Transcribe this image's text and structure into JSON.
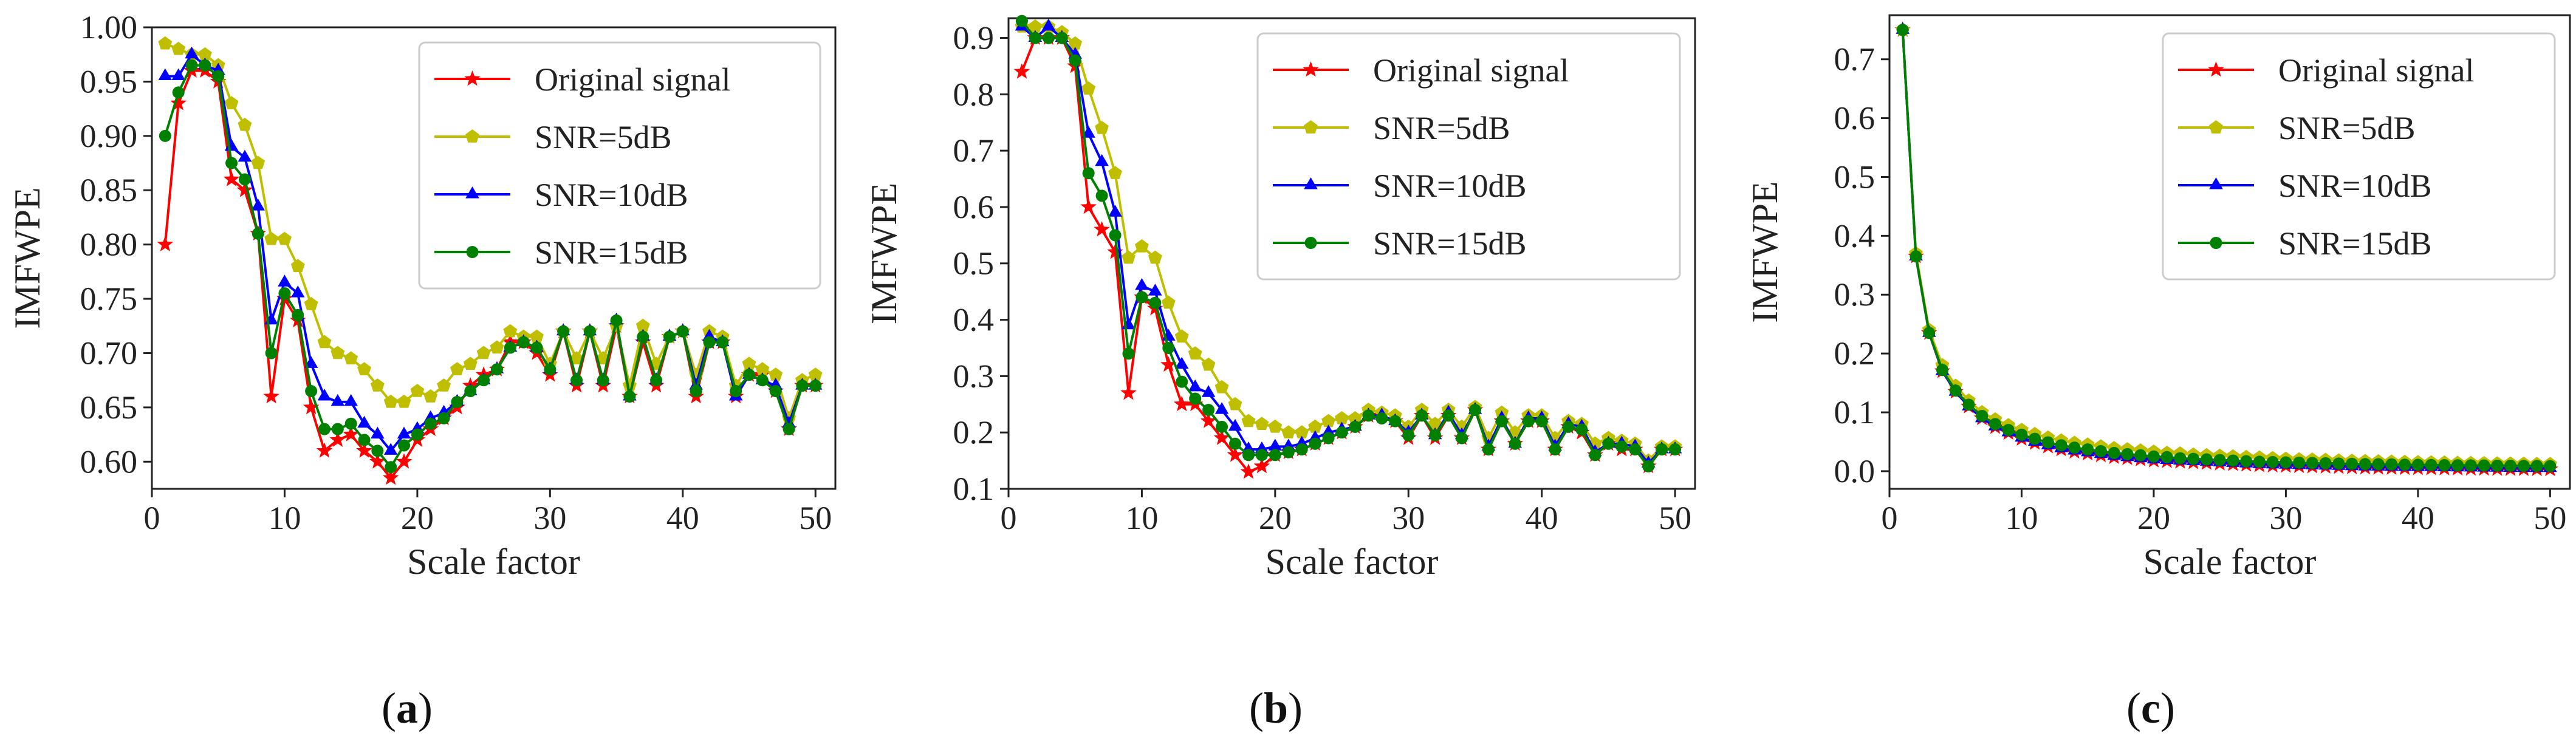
{
  "colors": {
    "original": "#ff0000",
    "snr5": "#bfbf00",
    "snr10": "#0000ff",
    "snr15": "#008000"
  },
  "captions": [
    {
      "open": "(",
      "letter": "a",
      "close": ")"
    },
    {
      "open": "(",
      "letter": "b",
      "close": ")"
    },
    {
      "open": "(",
      "letter": "c",
      "close": ")"
    }
  ],
  "chart_data": [
    {
      "type": "line",
      "title": "",
      "xlabel": "Scale factor",
      "ylabel": "IMFWPE",
      "xlim": [
        0,
        51.5
      ],
      "ylim": [
        0.575,
        1.0
      ],
      "xticks": [
        0,
        10,
        20,
        30,
        40,
        50
      ],
      "yticks": [
        0.6,
        0.65,
        0.7,
        0.75,
        0.8,
        0.85,
        0.9,
        0.95,
        1.0
      ],
      "ytick_labels": [
        "0.60",
        "0.65",
        "0.70",
        "0.75",
        "0.80",
        "0.85",
        "0.90",
        "0.95",
        "1.00"
      ],
      "legend_position": "top-right",
      "x_start": 1,
      "series": [
        {
          "name": "Original signal",
          "key": "original",
          "marker": "star",
          "values": [
            0.8,
            0.93,
            0.96,
            0.96,
            0.95,
            0.86,
            0.85,
            0.81,
            0.66,
            0.75,
            0.73,
            0.65,
            0.61,
            0.62,
            0.625,
            0.61,
            0.6,
            0.585,
            0.6,
            0.62,
            0.63,
            0.64,
            0.65,
            0.67,
            0.68,
            0.685,
            0.71,
            0.71,
            0.7,
            0.68,
            0.72,
            0.67,
            0.72,
            0.67,
            0.725,
            0.66,
            0.71,
            0.67,
            0.715,
            0.72,
            0.66,
            0.71,
            0.71,
            0.66,
            0.68,
            0.68,
            0.665,
            0.63,
            0.67,
            0.67
          ]
        },
        {
          "name": "SNR=5dB",
          "key": "snr5",
          "marker": "pentagon",
          "values": [
            0.985,
            0.98,
            0.975,
            0.975,
            0.965,
            0.93,
            0.91,
            0.875,
            0.805,
            0.805,
            0.78,
            0.745,
            0.71,
            0.7,
            0.695,
            0.685,
            0.67,
            0.655,
            0.655,
            0.665,
            0.66,
            0.67,
            0.685,
            0.69,
            0.7,
            0.705,
            0.72,
            0.715,
            0.715,
            0.69,
            0.72,
            0.695,
            0.72,
            0.695,
            0.725,
            0.67,
            0.725,
            0.69,
            0.715,
            0.72,
            0.68,
            0.72,
            0.715,
            0.67,
            0.69,
            0.685,
            0.68,
            0.64,
            0.675,
            0.68
          ]
        },
        {
          "name": "SNR=10dB",
          "key": "snr10",
          "marker": "triangle",
          "values": [
            0.955,
            0.955,
            0.975,
            0.965,
            0.96,
            0.89,
            0.88,
            0.835,
            0.73,
            0.765,
            0.755,
            0.69,
            0.66,
            0.655,
            0.655,
            0.635,
            0.625,
            0.61,
            0.625,
            0.63,
            0.64,
            0.645,
            0.655,
            0.665,
            0.675,
            0.685,
            0.705,
            0.71,
            0.705,
            0.685,
            0.72,
            0.675,
            0.72,
            0.675,
            0.73,
            0.66,
            0.715,
            0.675,
            0.715,
            0.72,
            0.67,
            0.715,
            0.71,
            0.66,
            0.68,
            0.675,
            0.67,
            0.635,
            0.67,
            0.67
          ]
        },
        {
          "name": "SNR=15dB",
          "key": "snr15",
          "marker": "circle",
          "values": [
            0.9,
            0.94,
            0.965,
            0.965,
            0.955,
            0.875,
            0.86,
            0.81,
            0.7,
            0.755,
            0.735,
            0.665,
            0.63,
            0.63,
            0.635,
            0.62,
            0.61,
            0.595,
            0.615,
            0.625,
            0.635,
            0.64,
            0.655,
            0.665,
            0.675,
            0.685,
            0.705,
            0.71,
            0.705,
            0.685,
            0.72,
            0.675,
            0.72,
            0.675,
            0.73,
            0.66,
            0.715,
            0.675,
            0.715,
            0.72,
            0.665,
            0.71,
            0.71,
            0.665,
            0.68,
            0.675,
            0.665,
            0.63,
            0.67,
            0.67
          ]
        }
      ]
    },
    {
      "type": "line",
      "title": "",
      "xlabel": "Scale factor",
      "ylabel": "IMFWPE",
      "xlim": [
        0,
        51.5
      ],
      "ylim": [
        0.1,
        0.935
      ],
      "xticks": [
        0,
        10,
        20,
        30,
        40,
        50
      ],
      "yticks": [
        0.1,
        0.2,
        0.3,
        0.4,
        0.5,
        0.6,
        0.7,
        0.8,
        0.9
      ],
      "ytick_labels": [
        "0.1",
        "0.2",
        "0.3",
        "0.4",
        "0.5",
        "0.6",
        "0.7",
        "0.8",
        "0.9"
      ],
      "legend_position": "top-right",
      "x_start": 1,
      "series": [
        {
          "name": "Original signal",
          "key": "original",
          "marker": "star",
          "values": [
            0.84,
            0.9,
            0.9,
            0.9,
            0.85,
            0.6,
            0.56,
            0.52,
            0.27,
            0.44,
            0.42,
            0.32,
            0.25,
            0.25,
            0.22,
            0.19,
            0.16,
            0.13,
            0.14,
            0.16,
            0.165,
            0.17,
            0.18,
            0.19,
            0.2,
            0.21,
            0.23,
            0.23,
            0.22,
            0.19,
            0.23,
            0.19,
            0.23,
            0.19,
            0.24,
            0.17,
            0.22,
            0.18,
            0.22,
            0.22,
            0.17,
            0.21,
            0.2,
            0.16,
            0.18,
            0.17,
            0.17,
            0.14,
            0.17,
            0.17
          ]
        },
        {
          "name": "SNR=5dB",
          "key": "snr5",
          "marker": "pentagon",
          "values": [
            0.92,
            0.92,
            0.92,
            0.91,
            0.89,
            0.81,
            0.74,
            0.66,
            0.51,
            0.53,
            0.51,
            0.43,
            0.37,
            0.34,
            0.32,
            0.28,
            0.25,
            0.22,
            0.215,
            0.21,
            0.2,
            0.2,
            0.21,
            0.22,
            0.225,
            0.225,
            0.24,
            0.235,
            0.23,
            0.21,
            0.24,
            0.215,
            0.24,
            0.21,
            0.245,
            0.19,
            0.235,
            0.2,
            0.23,
            0.23,
            0.19,
            0.22,
            0.215,
            0.18,
            0.19,
            0.185,
            0.18,
            0.15,
            0.175,
            0.175
          ]
        },
        {
          "name": "SNR=10dB",
          "key": "snr10",
          "marker": "triangle",
          "values": [
            0.92,
            0.9,
            0.92,
            0.9,
            0.87,
            0.73,
            0.68,
            0.59,
            0.39,
            0.46,
            0.45,
            0.37,
            0.32,
            0.28,
            0.27,
            0.24,
            0.21,
            0.17,
            0.17,
            0.175,
            0.175,
            0.18,
            0.19,
            0.2,
            0.205,
            0.21,
            0.23,
            0.23,
            0.22,
            0.2,
            0.23,
            0.195,
            0.235,
            0.195,
            0.24,
            0.175,
            0.225,
            0.18,
            0.225,
            0.225,
            0.175,
            0.215,
            0.21,
            0.165,
            0.18,
            0.18,
            0.175,
            0.145,
            0.17,
            0.17
          ]
        },
        {
          "name": "SNR=15dB",
          "key": "snr15",
          "marker": "circle",
          "values": [
            0.93,
            0.9,
            0.9,
            0.9,
            0.86,
            0.66,
            0.62,
            0.55,
            0.34,
            0.44,
            0.43,
            0.35,
            0.29,
            0.26,
            0.24,
            0.21,
            0.18,
            0.16,
            0.16,
            0.16,
            0.165,
            0.17,
            0.18,
            0.19,
            0.2,
            0.21,
            0.23,
            0.225,
            0.22,
            0.195,
            0.23,
            0.195,
            0.23,
            0.19,
            0.24,
            0.17,
            0.22,
            0.18,
            0.22,
            0.22,
            0.17,
            0.21,
            0.205,
            0.16,
            0.18,
            0.175,
            0.17,
            0.14,
            0.17,
            0.17
          ]
        }
      ]
    },
    {
      "type": "line",
      "title": "",
      "xlabel": "Scale factor",
      "ylabel": "IMFWPE",
      "xlim": [
        0,
        51.5
      ],
      "ylim": [
        -0.03,
        0.775
      ],
      "xticks": [
        0,
        10,
        20,
        30,
        40,
        50
      ],
      "yticks": [
        0.0,
        0.1,
        0.2,
        0.3,
        0.4,
        0.5,
        0.6,
        0.7
      ],
      "ytick_labels": [
        "0.0",
        "0.1",
        "0.2",
        "0.3",
        "0.4",
        "0.5",
        "0.6",
        "0.7"
      ],
      "legend_position": "top-right",
      "x_start": 1,
      "series": [
        {
          "name": "Original signal",
          "key": "original",
          "marker": "star",
          "values": [
            0.75,
            0.365,
            0.235,
            0.17,
            0.135,
            0.11,
            0.09,
            0.075,
            0.065,
            0.055,
            0.048,
            0.042,
            0.037,
            0.033,
            0.03,
            0.027,
            0.024,
            0.022,
            0.02,
            0.018,
            0.017,
            0.016,
            0.015,
            0.014,
            0.013,
            0.012,
            0.011,
            0.01,
            0.0095,
            0.009,
            0.0085,
            0.008,
            0.0075,
            0.007,
            0.0065,
            0.006,
            0.0058,
            0.0055,
            0.0052,
            0.005,
            0.0048,
            0.0046,
            0.0044,
            0.0042,
            0.004,
            0.0038,
            0.0036,
            0.0035,
            0.0034,
            0.0033
          ]
        },
        {
          "name": "SNR=5dB",
          "key": "snr5",
          "marker": "pentagon",
          "values": [
            0.75,
            0.37,
            0.24,
            0.18,
            0.145,
            0.12,
            0.1,
            0.088,
            0.078,
            0.07,
            0.063,
            0.057,
            0.052,
            0.048,
            0.045,
            0.042,
            0.039,
            0.037,
            0.035,
            0.033,
            0.031,
            0.03,
            0.028,
            0.027,
            0.026,
            0.025,
            0.024,
            0.023,
            0.022,
            0.021,
            0.02,
            0.0195,
            0.019,
            0.018,
            0.0175,
            0.017,
            0.0165,
            0.016,
            0.0155,
            0.015,
            0.0148,
            0.0145,
            0.014,
            0.0138,
            0.0135,
            0.013,
            0.0128,
            0.0125,
            0.012,
            0.012
          ]
        },
        {
          "name": "SNR=10dB",
          "key": "snr10",
          "marker": "triangle",
          "values": [
            0.75,
            0.365,
            0.235,
            0.17,
            0.135,
            0.11,
            0.09,
            0.076,
            0.066,
            0.057,
            0.05,
            0.044,
            0.039,
            0.035,
            0.032,
            0.029,
            0.026,
            0.024,
            0.022,
            0.02,
            0.019,
            0.018,
            0.017,
            0.016,
            0.015,
            0.014,
            0.013,
            0.012,
            0.0115,
            0.011,
            0.0105,
            0.01,
            0.0095,
            0.009,
            0.0085,
            0.008,
            0.0078,
            0.0075,
            0.0072,
            0.007,
            0.0068,
            0.0066,
            0.0064,
            0.0062,
            0.006,
            0.0058,
            0.0056,
            0.0055,
            0.0054,
            0.0053
          ]
        },
        {
          "name": "SNR=15dB",
          "key": "snr15",
          "marker": "circle",
          "values": [
            0.75,
            0.365,
            0.235,
            0.172,
            0.137,
            0.113,
            0.094,
            0.08,
            0.07,
            0.062,
            0.055,
            0.049,
            0.044,
            0.04,
            0.037,
            0.034,
            0.031,
            0.029,
            0.027,
            0.025,
            0.024,
            0.022,
            0.021,
            0.02,
            0.019,
            0.018,
            0.017,
            0.016,
            0.0155,
            0.015,
            0.0145,
            0.014,
            0.0135,
            0.013,
            0.0125,
            0.012,
            0.0118,
            0.0115,
            0.011,
            0.0108,
            0.0105,
            0.0102,
            0.01,
            0.0098,
            0.0096,
            0.0094,
            0.0092,
            0.009,
            0.0088,
            0.0086
          ]
        }
      ]
    }
  ]
}
